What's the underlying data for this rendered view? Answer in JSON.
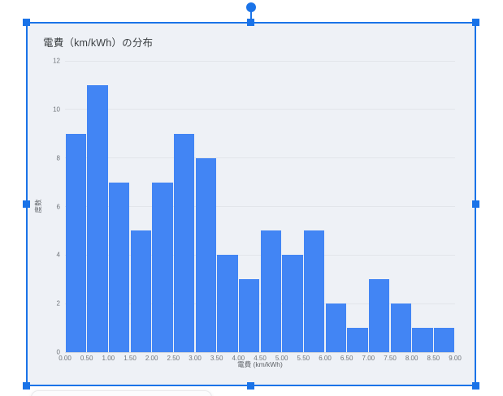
{
  "canvas": {
    "background": "#ffffff"
  },
  "selection": {
    "color": "#1a73e8",
    "handles": [
      "nw",
      "n",
      "ne",
      "w",
      "e",
      "sw",
      "s",
      "se"
    ],
    "rotate_handle": "circle-above-top-center"
  },
  "chart": {
    "background": "#eef1f6",
    "bar_color": "#4285f4",
    "gridline_color": "#e2e5ea",
    "title": "電費（km/kWh）の分布",
    "x_axis_label": "電費 (km/kWh)",
    "y_axis_label": "度数"
  },
  "chart_data": {
    "type": "bar",
    "subtype": "histogram",
    "title": "電費（km/kWh）の分布",
    "xlabel": "電費 (km/kWh)",
    "ylabel": "度数",
    "bin_width": 0.5,
    "xlim": [
      0,
      9
    ],
    "ylim": [
      0,
      12
    ],
    "grid": "horizontal",
    "legend": "none",
    "bins": [
      "0.00–0.50",
      "0.50–1.00",
      "1.00–1.50",
      "1.50–2.00",
      "2.00–2.50",
      "2.50–3.00",
      "3.00–3.50",
      "3.50–4.00",
      "4.00–4.50",
      "4.50–5.00",
      "5.00–5.50",
      "5.50–6.00",
      "6.00–6.50",
      "6.50–7.00",
      "7.00–7.50",
      "7.50–8.00",
      "8.00–8.50",
      "8.50–9.00"
    ],
    "values": [
      9,
      11,
      7,
      5,
      7,
      9,
      8,
      4,
      3,
      5,
      4,
      5,
      2,
      1,
      3,
      2,
      1,
      1
    ],
    "x_tick_labels": [
      "0.00",
      "0.50",
      "1.00",
      "1.50",
      "2.00",
      "2.50",
      "3.00",
      "3.50",
      "4.00",
      "4.50",
      "5.00",
      "5.50",
      "6.00",
      "6.50",
      "7.00",
      "7.50",
      "8.00",
      "8.50",
      "9.00"
    ],
    "y_ticks": [
      0,
      2,
      4,
      6,
      8,
      10,
      12
    ]
  }
}
